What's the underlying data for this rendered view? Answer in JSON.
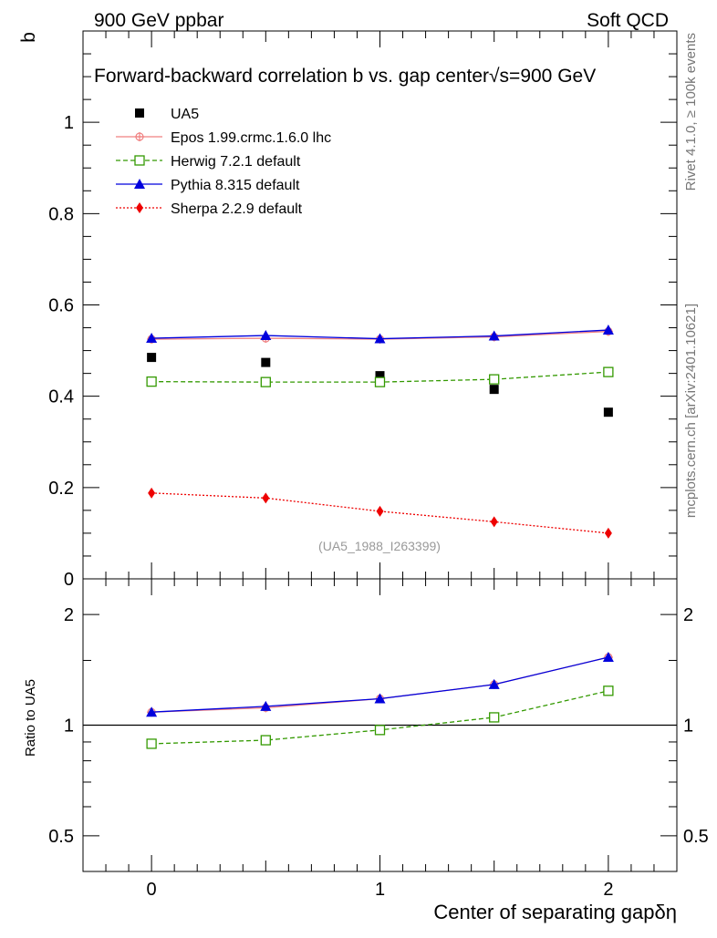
{
  "header": {
    "left": "900 GeV ppbar",
    "right": "Soft QCD"
  },
  "side_labels": {
    "rivet": "Rivet 4.1.0, ≥ 100k events",
    "mcplots": "mcplots.cern.ch [arXiv:2401.10621]"
  },
  "chart_data": [
    {
      "type": "line",
      "panel": "main",
      "title": "Forward-backward correlation b  vs. gap center",
      "title_energy": "√s=900 GeV",
      "ylabel": "b",
      "xlabel": "Center of separating gapδη",
      "watermark": "(UA5_1988_I263399)",
      "xlim": [
        -0.3,
        2.3
      ],
      "ylim": [
        0,
        1.2
      ],
      "yticks": [
        0,
        0.2,
        0.4,
        0.6,
        0.8,
        1
      ],
      "ytick_labels": [
        "0",
        "0.2",
        "0.4",
        "0.6",
        "0.8",
        "1"
      ],
      "x": [
        0,
        0.5,
        1,
        1.5,
        2
      ],
      "legend_position": "top-left",
      "series": [
        {
          "name": "UA5",
          "style": "data",
          "color": "#000000",
          "values": [
            0.485,
            0.474,
            0.445,
            0.415,
            0.365
          ]
        },
        {
          "name": "Epos 1.99.crmc.1.6.0 lhc",
          "style": "solid",
          "marker": "cross",
          "color": "#f08080",
          "values": [
            0.525,
            0.527,
            0.525,
            0.53,
            0.542
          ]
        },
        {
          "name": "Herwig 7.2.1 default",
          "style": "dashed",
          "marker": "open-square",
          "color": "#339900",
          "values": [
            0.432,
            0.431,
            0.431,
            0.437,
            0.453
          ]
        },
        {
          "name": "Pythia 8.315 default",
          "style": "solid",
          "marker": "triangle",
          "color": "#0000dd",
          "values": [
            0.527,
            0.533,
            0.526,
            0.532,
            0.545
          ]
        },
        {
          "name": "Sherpa 2.2.9 default",
          "style": "dotted",
          "marker": "diamond",
          "color": "#ee0000",
          "values": [
            0.188,
            0.177,
            0.148,
            0.125,
            0.1
          ]
        }
      ]
    },
    {
      "type": "line",
      "panel": "ratio",
      "ylabel": "Ratio to UA5",
      "scale": "log",
      "ylim": [
        0.4,
        2.5
      ],
      "yticks": [
        0.5,
        1,
        2
      ],
      "ytick_labels": [
        "0.5",
        "1",
        "2"
      ],
      "xticks": [
        0,
        1,
        2
      ],
      "xtick_labels": [
        "0",
        "1",
        "2"
      ],
      "x": [
        0,
        0.5,
        1,
        1.5,
        2
      ],
      "series": [
        {
          "name": "Epos 1.99.crmc.1.6.0 lhc",
          "style": "solid",
          "marker": "cross",
          "color": "#f08080",
          "values": [
            1.085,
            1.115,
            1.18,
            1.29,
            1.53
          ]
        },
        {
          "name": "Herwig 7.2.1 default",
          "style": "dashed",
          "marker": "open-square",
          "color": "#339900",
          "values": [
            0.89,
            0.91,
            0.97,
            1.05,
            1.24
          ]
        },
        {
          "name": "Pythia 8.315 default",
          "style": "solid",
          "marker": "triangle",
          "color": "#0000dd",
          "values": [
            1.085,
            1.125,
            1.18,
            1.29,
            1.53
          ]
        }
      ]
    }
  ]
}
